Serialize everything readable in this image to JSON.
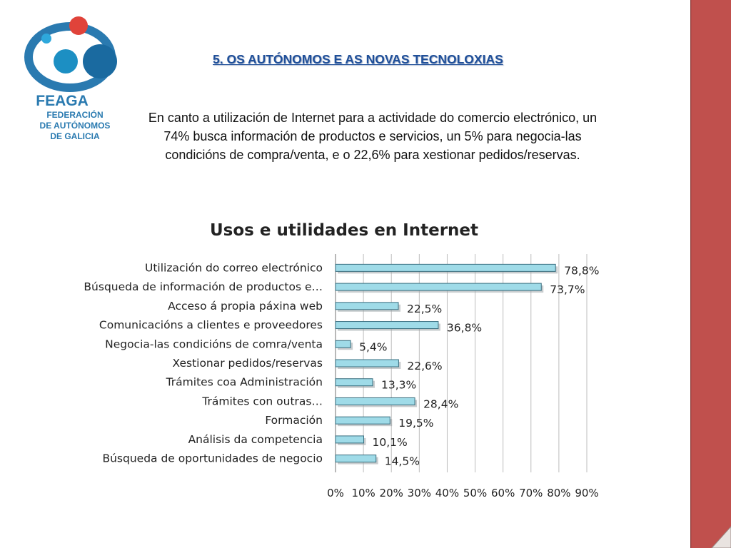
{
  "logo": {
    "name": "FEAGA",
    "lines": [
      "FEDERACIÓN",
      "DE AUTÓNOMOS",
      "DE GALICIA"
    ]
  },
  "heading": "5. OS AUTÓNOMOS E AS NOVAS TECNOLOXIAS",
  "intro": "En canto a utilización de Internet para a actividade do comercio electrónico, un 74% busca información de productos e servicios, un 5% para negocia-las condicións de compra/venta, e o 22,6% para xestionar pedidos/reservas.",
  "colors": {
    "bar": "#9fdbe8",
    "bar_edge": "#3a6f80",
    "heading": "#1f4f99",
    "logo_blue": "#2a7ab0",
    "logo_red": "#e0433a",
    "band": "#c0504d"
  },
  "chart_data": {
    "type": "bar",
    "orientation": "horizontal",
    "title": "Usos e utilidades en Internet",
    "categories": [
      "Utilización do correo electrónico",
      "Búsqueda de información de productos e…",
      "Acceso á propia páxina web",
      "Comunicacións a clientes e proveedores",
      "Negocia-las condicións de comra/venta",
      "Xestionar pedidos/reservas",
      "Trámites coa Administración",
      "Trámites con outras…",
      "Formación",
      "Análisis da competencia",
      "Búsqueda de oportunidades de negocio"
    ],
    "values": [
      78.8,
      73.7,
      22.5,
      36.8,
      5.4,
      22.6,
      13.3,
      28.4,
      19.5,
      10.1,
      14.5
    ],
    "value_labels": [
      "78,8%",
      "73,7%",
      "22,5%",
      "36,8%",
      "5,4%",
      "22,6%",
      "13,3%",
      "28,4%",
      "19,5%",
      "10,1%",
      "14,5%"
    ],
    "xlim": [
      0,
      90
    ],
    "xticks": [
      "0%",
      "10%",
      "20%",
      "30%",
      "40%",
      "50%",
      "60%",
      "70%",
      "80%",
      "90%"
    ],
    "grid": true,
    "legend": "none"
  }
}
